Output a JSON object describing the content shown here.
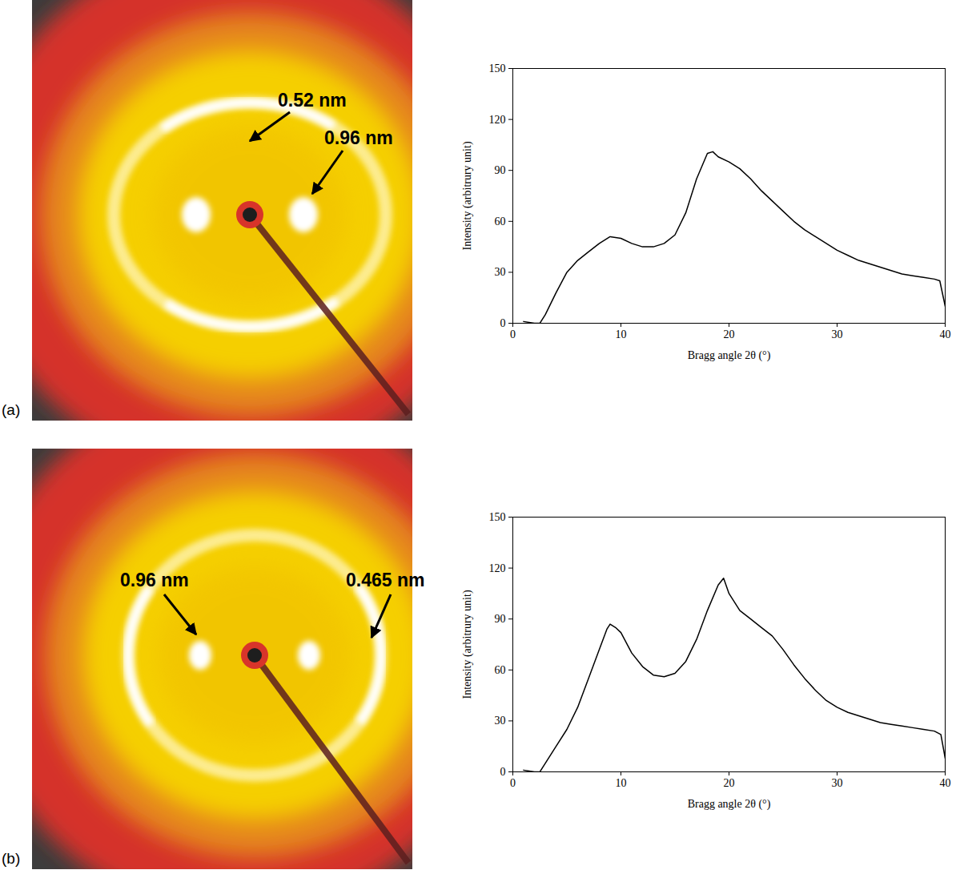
{
  "diffraction_patterns": [
    {
      "label": "(a)",
      "annotations": [
        {
          "text": "0.52 nm"
        },
        {
          "text": "0.96 nm"
        }
      ]
    },
    {
      "label": "(b)",
      "annotations": [
        {
          "text": "0.96 nm"
        },
        {
          "text": "0.465 nm"
        }
      ]
    }
  ],
  "chart_data": [
    {
      "type": "line",
      "x_label": "Bragg angle 2θ (°)",
      "y_label": "Intensity (arbitrury unit)",
      "x": [
        1,
        2,
        2.5,
        3,
        4,
        5,
        6,
        7,
        8,
        9,
        10,
        11,
        12,
        13,
        14,
        15,
        16,
        17,
        18,
        18.5,
        19,
        20,
        21,
        22,
        23,
        24,
        25,
        26,
        27,
        28,
        29,
        30,
        31,
        32,
        33,
        34,
        35,
        36,
        37,
        38,
        39,
        39.5,
        40
      ],
      "values": [
        1,
        0,
        0,
        5,
        18,
        30,
        37,
        42,
        47,
        51,
        50,
        47,
        45,
        45,
        47,
        52,
        65,
        85,
        100,
        101,
        98,
        95,
        91,
        85,
        78,
        72,
        66,
        60,
        55,
        51,
        47,
        43,
        40,
        37,
        35,
        33,
        31,
        29,
        28,
        27,
        26,
        25,
        10
      ],
      "color": "#000000",
      "line_style": "solid",
      "grid": false,
      "xlim": [
        0,
        40
      ],
      "xticks": [
        0,
        10,
        20,
        30,
        40
      ],
      "ylim": [
        0,
        150
      ],
      "yticks": [
        0,
        30,
        60,
        90,
        120,
        150
      ]
    },
    {
      "type": "line",
      "x_label": "Bragg angle 2θ (°)",
      "y_label": "Intensity (arbitrury unit)",
      "x": [
        1,
        2,
        2.5,
        3,
        4,
        5,
        6,
        7,
        8,
        8.7,
        9,
        9.5,
        10,
        11,
        12,
        13,
        14,
        15,
        16,
        17,
        18,
        19,
        19.5,
        20,
        21,
        22,
        23,
        24,
        25,
        26,
        27,
        28,
        29,
        30,
        31,
        32,
        33,
        34,
        35,
        36,
        37,
        38,
        39,
        39.6,
        40
      ],
      "values": [
        1,
        0,
        0,
        5,
        15,
        25,
        38,
        55,
        72,
        84,
        87,
        85,
        82,
        70,
        62,
        57,
        56,
        58,
        65,
        78,
        95,
        110,
        114,
        105,
        95,
        90,
        85,
        80,
        72,
        63,
        55,
        48,
        42,
        38,
        35,
        33,
        31,
        29,
        28,
        27,
        26,
        25,
        24,
        22,
        8
      ],
      "color": "#000000",
      "line_style": "solid",
      "grid": false,
      "xlim": [
        0,
        40
      ],
      "xticks": [
        0,
        10,
        20,
        30,
        40
      ],
      "ylim": [
        0,
        150
      ],
      "yticks": [
        0,
        30,
        60,
        90,
        120,
        150
      ]
    }
  ]
}
